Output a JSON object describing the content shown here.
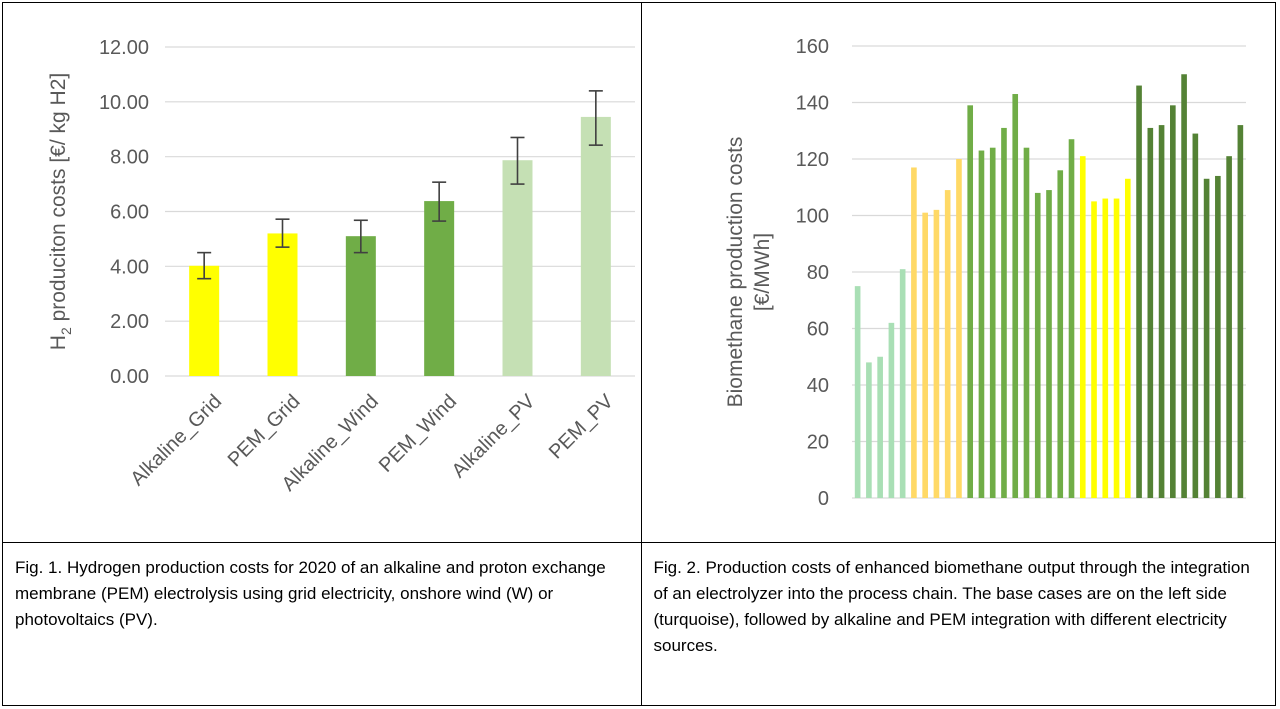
{
  "chart_data": [
    {
      "type": "bar",
      "categories": [
        "Alkaline_Grid",
        "PEM_Grid",
        "Alkaline_Wind",
        "PEM_Wind",
        "Alkaline_PV",
        "PEM_PV"
      ],
      "values": [
        4.02,
        5.2,
        5.1,
        6.38,
        7.87,
        9.45
      ],
      "error_low": [
        3.55,
        4.7,
        4.5,
        5.65,
        7.0,
        8.42
      ],
      "error_high": [
        4.5,
        5.72,
        5.68,
        7.07,
        8.7,
        10.4
      ],
      "colors": [
        "#ffff00",
        "#ffff00",
        "#70ad47",
        "#70ad47",
        "#c5e0b4",
        "#c5e0b4"
      ],
      "ylabel_main": "H",
      "ylabel_sub": "2",
      "ylabel_rest": " produciton costs [€/ kg H2]",
      "ylim": [
        0,
        12
      ],
      "yticks": [
        "0.00",
        "2.00",
        "4.00",
        "6.00",
        "8.00",
        "10.00",
        "12.00"
      ],
      "grid": true,
      "legend": "none"
    },
    {
      "type": "bar",
      "values": [
        75,
        48,
        50,
        62,
        81,
        117,
        101,
        102,
        109,
        120,
        139,
        123,
        124,
        131,
        143,
        124,
        108,
        109,
        116,
        127,
        121,
        105,
        106,
        106,
        113,
        146,
        131,
        132,
        139,
        150,
        129,
        113,
        114,
        121,
        132
      ],
      "colors": [
        "#a9dfb5",
        "#a9dfb5",
        "#a9dfb5",
        "#a9dfb5",
        "#a9dfb5",
        "#ffd966",
        "#ffd966",
        "#ffd966",
        "#ffd966",
        "#ffd966",
        "#70ad47",
        "#70ad47",
        "#70ad47",
        "#70ad47",
        "#70ad47",
        "#70ad47",
        "#70ad47",
        "#70ad47",
        "#70ad47",
        "#70ad47",
        "#ffff00",
        "#ffff00",
        "#ffff00",
        "#ffff00",
        "#ffff00",
        "#548235",
        "#548235",
        "#548235",
        "#548235",
        "#548235",
        "#548235",
        "#548235",
        "#548235",
        "#548235",
        "#548235"
      ],
      "ylabel_line1": "Biomethane production costs",
      "ylabel_line2": "[€/MWh]",
      "ylim": [
        0,
        160
      ],
      "yticks": [
        "0",
        "20",
        "40",
        "60",
        "80",
        "100",
        "120",
        "140",
        "160"
      ],
      "grid": true,
      "legend": "none"
    }
  ],
  "captions": {
    "fig1": "Fig. 1. Hydrogen production costs for 2020 of an alkaline and proton exchange membrane (PEM) electrolysis using grid electricity, onshore wind (W) or photovoltaics (PV).",
    "fig2": "Fig. 2. Production costs of enhanced biomethane output through the integration of an electrolyzer into the process chain. The base cases are on the left side (turquoise), followed by alkaline and PEM integration with different electricity sources."
  }
}
